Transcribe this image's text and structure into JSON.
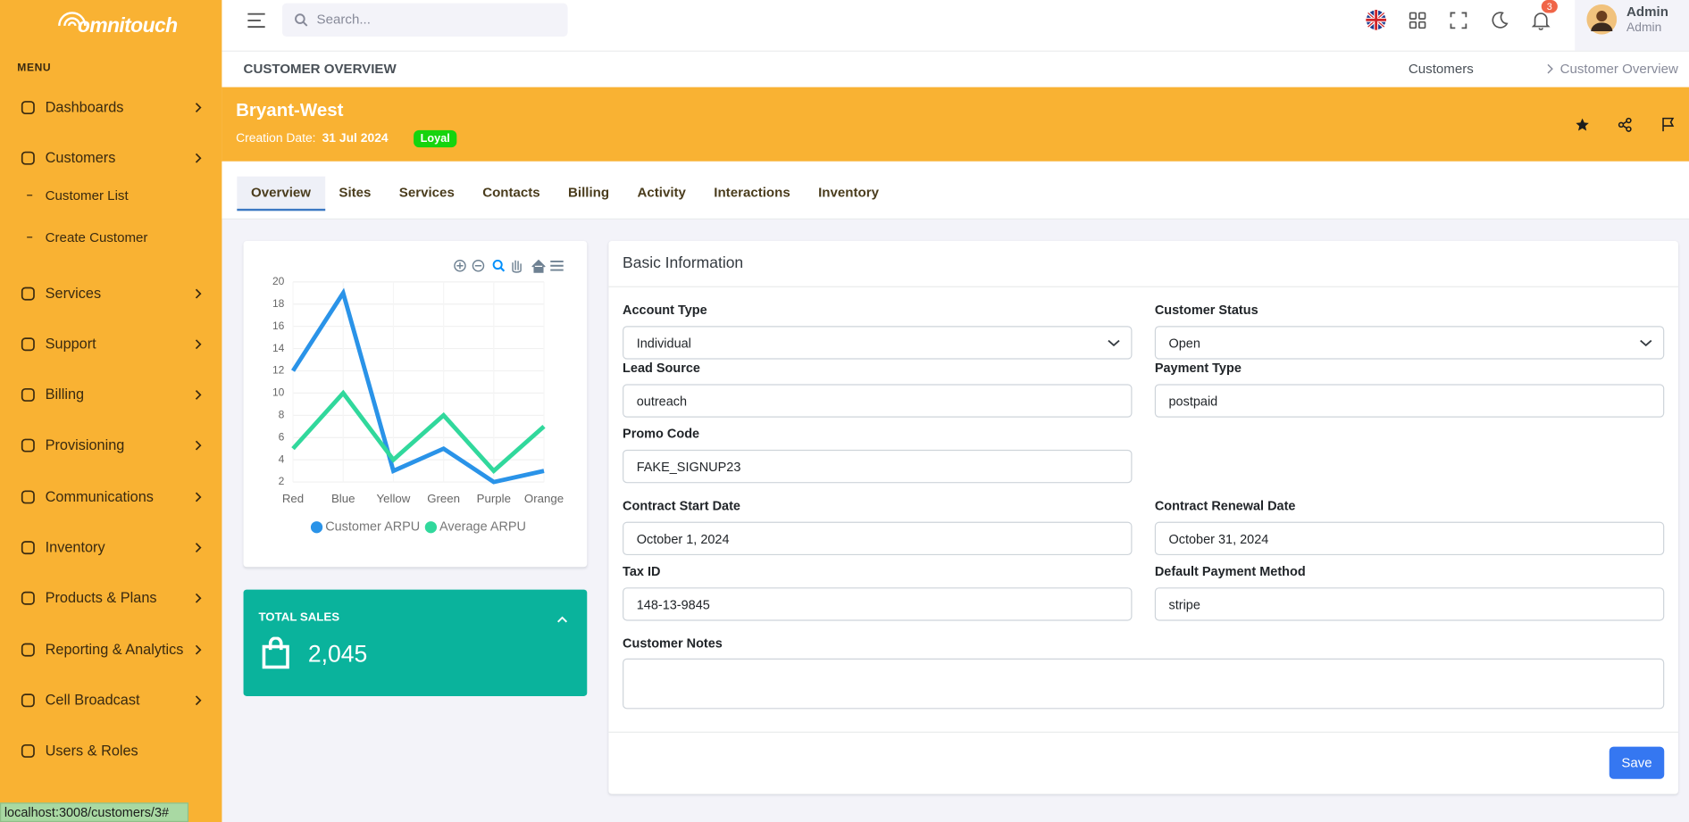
{
  "logo": "omnitouch",
  "sidebar": {
    "menu_label": "MENU",
    "items": [
      {
        "label": "Dashboards"
      },
      {
        "label": "Customers",
        "children": [
          "Customer List",
          "Create Customer"
        ]
      },
      {
        "label": "Services"
      },
      {
        "label": "Support"
      },
      {
        "label": "Billing"
      },
      {
        "label": "Provisioning"
      },
      {
        "label": "Communications"
      },
      {
        "label": "Inventory"
      },
      {
        "label": "Products & Plans"
      },
      {
        "label": "Reporting & Analytics"
      },
      {
        "label": "Cell Broadcast"
      },
      {
        "label": "Users & Roles"
      }
    ]
  },
  "topbar": {
    "search_placeholder": "Search...",
    "notifications": "3",
    "user_name": "Admin",
    "user_role": "Admin"
  },
  "page_title": "CUSTOMER OVERVIEW",
  "breadcrumb": [
    "Customers",
    "Customer Overview"
  ],
  "customer": {
    "name": "Bryant-West",
    "creation_label": "Creation Date:",
    "creation_date": "31 Jul 2024",
    "badge": "Loyal"
  },
  "tabs": [
    "Overview",
    "Sites",
    "Services",
    "Contacts",
    "Billing",
    "Activity",
    "Interactions",
    "Inventory"
  ],
  "chart_data": {
    "type": "line",
    "categories": [
      "Red",
      "Blue",
      "Yellow",
      "Green",
      "Purple",
      "Orange"
    ],
    "series": [
      {
        "name": "Customer ARPU",
        "color": "#2a93e8",
        "values": [
          12,
          19,
          3,
          5,
          2,
          3
        ]
      },
      {
        "name": "Average ARPU",
        "color": "#31d89c",
        "values": [
          5,
          10,
          4,
          8,
          3,
          7
        ]
      }
    ],
    "ylim": [
      2,
      20
    ],
    "yticks": [
      2,
      4,
      6,
      8,
      10,
      12,
      14,
      16,
      18,
      20
    ],
    "grid": true
  },
  "total_sales": {
    "label": "TOTAL SALES",
    "value": "2,045"
  },
  "form": {
    "title": "Basic Information",
    "rows": [
      [
        {
          "label": "Account Type",
          "value": "Individual"
        },
        {
          "label": "Customer Status",
          "value": "Open"
        }
      ],
      [
        {
          "label": "Lead Source",
          "value": "outreach"
        },
        {
          "label": "Payment Type",
          "value": "postpaid"
        }
      ],
      [
        {
          "label": "Promo Code",
          "value": "FAKE_SIGNUP23"
        }
      ],
      [
        {
          "label": "Contract Start Date",
          "value": "October 1, 2024"
        },
        {
          "label": "Contract Renewal Date",
          "value": "October 31, 2024"
        }
      ],
      [
        {
          "label": "Tax ID",
          "value": "148-13-9845"
        },
        {
          "label": "Default Payment Method",
          "value": "stripe"
        }
      ]
    ],
    "notes_label": "Customer Notes",
    "save": "Save"
  },
  "status_bar": "localhost:3008/customers/3#"
}
